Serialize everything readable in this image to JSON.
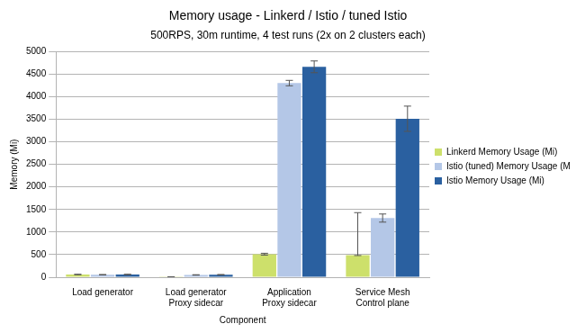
{
  "chart_data": {
    "type": "bar",
    "title": "Memory usage - Linkerd / Istio / tuned Istio",
    "subtitle": "500RPS, 30m runtime, 4 test runs (2x on 2 clusters each)",
    "x_label": "Component",
    "y_label": "Memory (Mi)",
    "categories": [
      [
        "Load generator"
      ],
      [
        "Load generator",
        "Proxy sidecar"
      ],
      [
        "Application",
        "Proxy sidecar"
      ],
      [
        "Service Mesh",
        "Control plane"
      ]
    ],
    "series": [
      {
        "name": "Linkerd Memory Usage (Mi)",
        "color": "#cde06b",
        "values": [
          60,
          5,
          510,
          490
        ],
        "error_minus": [
          5,
          2,
          20,
          10
        ],
        "error_plus": [
          5,
          2,
          20,
          940
        ]
      },
      {
        "name": "Istio (tuned) Memory Usage (Mi)",
        "color": "#b4c7e7",
        "values": [
          55,
          50,
          4300,
          1310
        ],
        "error_minus": [
          5,
          5,
          60,
          90
        ],
        "error_plus": [
          5,
          5,
          60,
          90
        ]
      },
      {
        "name": "Istio Memory Usage (Mi)",
        "color": "#2a60a0",
        "values": [
          60,
          55,
          4660,
          3510
        ],
        "error_minus": [
          5,
          5,
          130,
          280
        ],
        "error_plus": [
          5,
          5,
          130,
          280
        ]
      }
    ],
    "ylim": [
      0,
      5000
    ],
    "yticks": [
      0,
      500,
      1000,
      1500,
      2000,
      2500,
      3000,
      3500,
      4000,
      4500,
      5000
    ],
    "grid": true,
    "legend": "right"
  }
}
